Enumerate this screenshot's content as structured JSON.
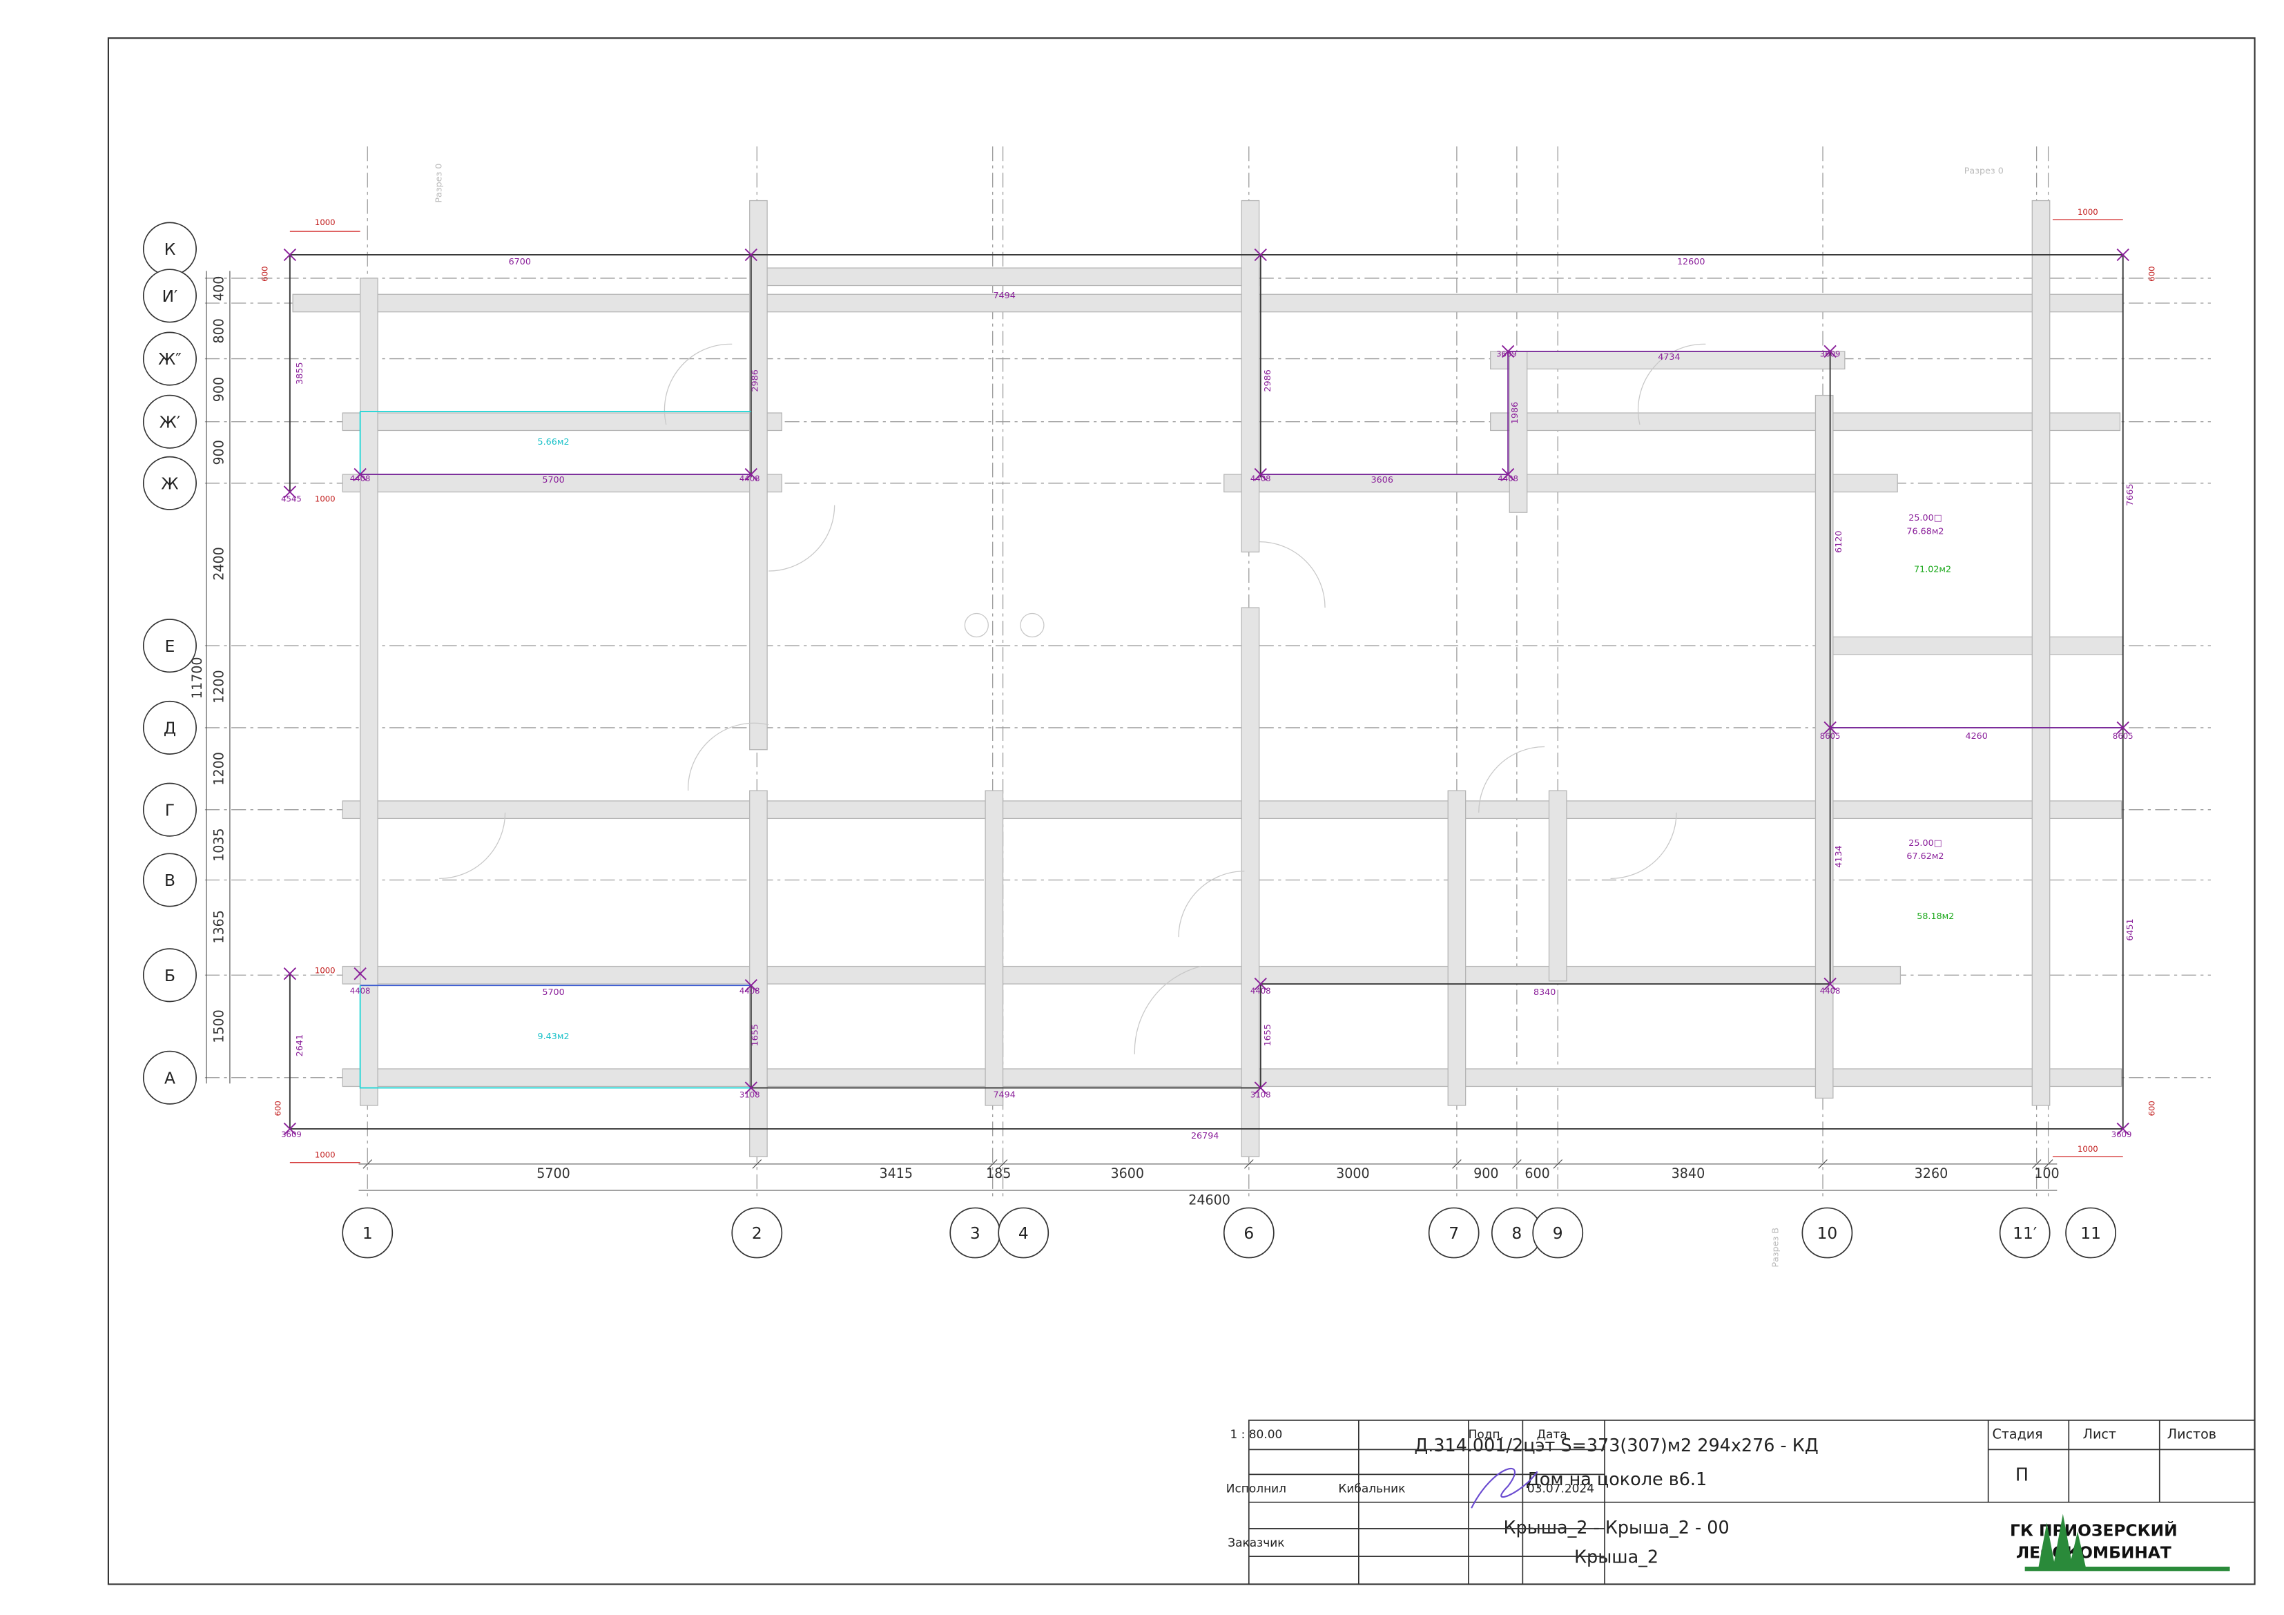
{
  "column_axes": [
    "1",
    "2",
    "3",
    "4",
    "6",
    "7",
    "8",
    "9",
    "10",
    "11′",
    "11"
  ],
  "row_axes": [
    "К",
    "И′",
    "Ж″",
    "Ж′",
    "Ж",
    "Е",
    "Д",
    "Г",
    "В",
    "Б",
    "А"
  ],
  "bottom_dimensions": [
    5700,
    3415,
    185,
    3600,
    3000,
    900,
    600,
    3840,
    3260,
    100
  ],
  "overall_width": 24600,
  "left_dimensions": [
    400,
    800,
    900,
    900,
    2400,
    1200,
    1200,
    1035,
    1365,
    1500
  ],
  "overall_height": 11700,
  "roof_dimensions": [
    6700,
    12600,
    7494,
    7494,
    26794,
    5700,
    5700,
    3606,
    4734,
    4260,
    8340,
    3855,
    2986,
    2986,
    1986,
    2641,
    1655,
    1655,
    6120,
    4134,
    7665,
    6451
  ],
  "point_marks": [
    4545,
    4408,
    4408,
    4408,
    4408,
    3609,
    3609,
    4408,
    4408,
    4408,
    4408,
    3108,
    3108,
    8605,
    8605,
    3609,
    3609
  ],
  "overhang_dimensions": [
    1000,
    1000,
    600,
    600,
    1000,
    1000,
    600,
    600,
    1000,
    1000
  ],
  "areas": [
    "5.66м2",
    "9.43м2",
    "25.00□",
    "76.68м2",
    "71.02м2",
    "25.00□",
    "67.62м2",
    "58.18м2"
  ],
  "section_marks": [
    "Разрез 0",
    "Разрез 0",
    "Разрез В"
  ],
  "title_block": {
    "scale": "1 : 80.00",
    "signature_header": "Подп.",
    "date_header": "Дата",
    "performer_label": "Исполнил",
    "performer": "Кибальник",
    "date": "03.07.2024",
    "customer_label": "Заказчик",
    "project_code": "Д.314.001/2цэт S=373(307)м2 294x276 - КД",
    "project_name": "Дом на цоколе в6.1",
    "stage_header": "Стадия",
    "sheet_header": "Лист",
    "sheets_header": "Листов",
    "stage": "П",
    "drawing_name": "Крыша_2 - Крыша_2 - 00",
    "drawing_subname": "Крыша_2",
    "company_line1": "ГК ПРИОЗЕРСКИЙ",
    "company_line2": "ЛЕСОКОМБИНАТ"
  }
}
